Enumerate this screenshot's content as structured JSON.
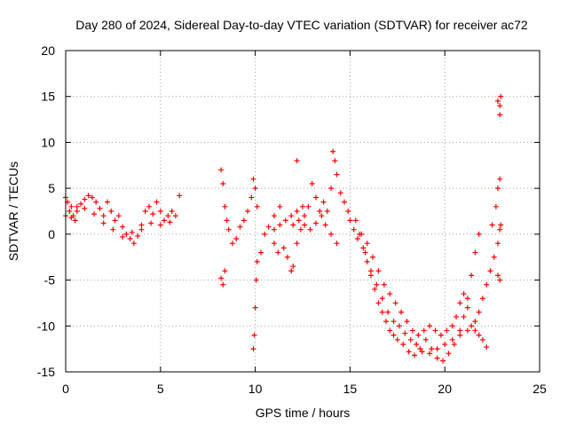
{
  "chart_data": {
    "type": "scatter",
    "title": "Day 280 of 2024, Sidereal Day-to-day VTEC variation (SDTVAR) for receiver ac72",
    "xlabel": "GPS time / hours",
    "ylabel": "SDTVAR / TECUs",
    "xlim": [
      0,
      25
    ],
    "ylim": [
      -15,
      20
    ],
    "xticks": [
      0,
      5,
      10,
      15,
      20,
      25
    ],
    "yticks": [
      -15,
      -10,
      -5,
      0,
      5,
      10,
      15,
      20
    ],
    "grid": true,
    "marker": "+",
    "series": [
      {
        "name": "SDTVAR",
        "color": "#ff0000",
        "points": [
          [
            0.0,
            4.0
          ],
          [
            0.1,
            3.5
          ],
          [
            0.2,
            2.5
          ],
          [
            0.3,
            3.0
          ],
          [
            0.4,
            2.0
          ],
          [
            0.5,
            1.5
          ],
          [
            0.6,
            3.0
          ],
          [
            0.8,
            3.3
          ],
          [
            1.0,
            3.8
          ],
          [
            1.2,
            4.2
          ],
          [
            1.4,
            4.0
          ],
          [
            1.6,
            3.5
          ],
          [
            1.8,
            2.8
          ],
          [
            2.0,
            2.0
          ],
          [
            2.2,
            3.5
          ],
          [
            2.4,
            2.5
          ],
          [
            2.6,
            1.5
          ],
          [
            2.8,
            2.0
          ],
          [
            3.0,
            0.8
          ],
          [
            3.2,
            0.0
          ],
          [
            3.4,
            -0.5
          ],
          [
            3.6,
            -1.0
          ],
          [
            3.8,
            -0.2
          ],
          [
            4.0,
            1.0
          ],
          [
            4.2,
            2.5
          ],
          [
            4.4,
            3.0
          ],
          [
            4.6,
            2.2
          ],
          [
            4.8,
            3.5
          ],
          [
            5.0,
            2.5
          ],
          [
            5.2,
            1.5
          ],
          [
            5.4,
            2.0
          ],
          [
            5.6,
            2.5
          ],
          [
            5.8,
            2.0
          ],
          [
            6.0,
            4.2
          ],
          [
            0.0,
            2.0
          ],
          [
            0.3,
            1.8
          ],
          [
            0.6,
            2.5
          ],
          [
            1.0,
            2.8
          ],
          [
            1.5,
            2.2
          ],
          [
            2.0,
            1.2
          ],
          [
            2.5,
            0.5
          ],
          [
            3.0,
            -0.3
          ],
          [
            3.5,
            0.2
          ],
          [
            4.0,
            0.5
          ],
          [
            4.5,
            1.2
          ],
          [
            5.0,
            1.0
          ],
          [
            5.5,
            1.3
          ],
          [
            8.2,
            7.0
          ],
          [
            8.3,
            5.5
          ],
          [
            8.4,
            3.0
          ],
          [
            8.5,
            1.5
          ],
          [
            8.6,
            0.5
          ],
          [
            8.8,
            -1.0
          ],
          [
            9.0,
            -0.5
          ],
          [
            9.2,
            0.8
          ],
          [
            9.4,
            1.5
          ],
          [
            9.6,
            2.5
          ],
          [
            9.8,
            4.0
          ],
          [
            9.9,
            6.0
          ],
          [
            10.0,
            5.0
          ],
          [
            10.1,
            3.0
          ],
          [
            8.2,
            -4.8
          ],
          [
            8.3,
            -5.5
          ],
          [
            8.4,
            -4.0
          ],
          [
            9.9,
            -12.5
          ],
          [
            9.95,
            -11.0
          ],
          [
            10.0,
            -8.0
          ],
          [
            10.05,
            -5.0
          ],
          [
            10.1,
            -3.0
          ],
          [
            10.3,
            -2.0
          ],
          [
            10.5,
            0.0
          ],
          [
            10.7,
            0.8
          ],
          [
            11.0,
            2.0
          ],
          [
            11.3,
            3.0
          ],
          [
            11.5,
            -1.5
          ],
          [
            11.7,
            -2.5
          ],
          [
            11.9,
            -4.0
          ],
          [
            12.0,
            -3.5
          ],
          [
            12.2,
            -1.0
          ],
          [
            12.4,
            0.5
          ],
          [
            12.6,
            2.0
          ],
          [
            12.8,
            3.0
          ],
          [
            13.0,
            5.5
          ],
          [
            13.2,
            4.0
          ],
          [
            13.4,
            2.5
          ],
          [
            12.0,
            1.0
          ],
          [
            12.3,
            1.5
          ],
          [
            12.6,
            1.0
          ],
          [
            12.9,
            0.5
          ],
          [
            13.2,
            1.2
          ],
          [
            13.5,
            2.0
          ],
          [
            11.0,
            0.5
          ],
          [
            11.3,
            1.0
          ],
          [
            11.6,
            1.5
          ],
          [
            11.9,
            2.0
          ],
          [
            12.2,
            2.5
          ],
          [
            12.5,
            3.0
          ],
          [
            13.6,
            3.5
          ],
          [
            13.8,
            2.5
          ],
          [
            14.0,
            5.0
          ],
          [
            14.1,
            9.0
          ],
          [
            14.2,
            8.0
          ],
          [
            14.3,
            6.5
          ],
          [
            14.5,
            4.5
          ],
          [
            14.7,
            3.5
          ],
          [
            14.9,
            2.5
          ],
          [
            15.0,
            1.5
          ],
          [
            15.2,
            0.5
          ],
          [
            15.4,
            -0.5
          ],
          [
            12.2,
            8.0
          ],
          [
            11.0,
            -1.0
          ],
          [
            11.2,
            -2.0
          ],
          [
            13.7,
            1.0
          ],
          [
            14.0,
            0.0
          ],
          [
            14.3,
            -1.0
          ],
          [
            15.5,
            0.0
          ],
          [
            15.7,
            -1.5
          ],
          [
            15.9,
            -3.0
          ],
          [
            16.1,
            -4.5
          ],
          [
            16.3,
            -6.0
          ],
          [
            16.5,
            -7.5
          ],
          [
            16.7,
            -8.5
          ],
          [
            16.9,
            -9.5
          ],
          [
            17.1,
            -10.5
          ],
          [
            17.3,
            -11.0
          ],
          [
            17.5,
            -11.5
          ],
          [
            17.8,
            -12.0
          ],
          [
            18.1,
            -12.8
          ],
          [
            18.4,
            -13.2
          ],
          [
            18.7,
            -12.5
          ],
          [
            19.0,
            -11.5
          ],
          [
            19.3,
            -12.5
          ],
          [
            19.6,
            -13.5
          ],
          [
            19.9,
            -13.8
          ],
          [
            20.2,
            -13.0
          ],
          [
            20.5,
            -12.0
          ],
          [
            20.8,
            -10.5
          ],
          [
            21.0,
            -9.0
          ],
          [
            21.2,
            -7.0
          ],
          [
            21.4,
            -4.5
          ],
          [
            21.6,
            -2.0
          ],
          [
            21.8,
            0.0
          ],
          [
            15.3,
            1.5
          ],
          [
            15.6,
            0.0
          ],
          [
            15.9,
            -1.0
          ],
          [
            16.2,
            -2.5
          ],
          [
            16.5,
            -4.0
          ],
          [
            16.8,
            -5.5
          ],
          [
            17.1,
            -6.5
          ],
          [
            17.4,
            -7.5
          ],
          [
            17.7,
            -8.5
          ],
          [
            18.0,
            -9.5
          ],
          [
            18.3,
            -10.5
          ],
          [
            18.6,
            -11.0
          ],
          [
            18.9,
            -10.5
          ],
          [
            19.2,
            -10.0
          ],
          [
            19.5,
            -10.5
          ],
          [
            19.8,
            -11.0
          ],
          [
            20.1,
            -10.5
          ],
          [
            20.4,
            -10.0
          ],
          [
            20.6,
            -9.0
          ],
          [
            20.8,
            -7.5
          ],
          [
            21.0,
            -6.5
          ],
          [
            21.2,
            -8.0
          ],
          [
            21.4,
            -10.0
          ],
          [
            21.6,
            -10.5
          ],
          [
            21.8,
            -11.0
          ],
          [
            22.0,
            -11.5
          ],
          [
            22.2,
            -12.3
          ],
          [
            15.8,
            -2.0
          ],
          [
            16.1,
            -4.0
          ],
          [
            16.4,
            -5.5
          ],
          [
            16.7,
            -7.0
          ],
          [
            17.0,
            -8.5
          ],
          [
            17.3,
            -9.5
          ],
          [
            17.6,
            -10.0
          ],
          [
            17.9,
            -10.8
          ],
          [
            18.2,
            -11.5
          ],
          [
            18.5,
            -12.0
          ],
          [
            18.8,
            -12.8
          ],
          [
            19.2,
            -13.0
          ],
          [
            19.6,
            -12.5
          ],
          [
            20.0,
            -12.0
          ],
          [
            20.4,
            -11.5
          ],
          [
            20.8,
            -11.0
          ],
          [
            21.2,
            -10.5
          ],
          [
            21.6,
            -9.5
          ],
          [
            21.8,
            -8.5
          ],
          [
            22.0,
            -7.0
          ],
          [
            22.2,
            -5.5
          ],
          [
            22.4,
            -4.0
          ],
          [
            22.6,
            -2.5
          ],
          [
            22.8,
            -1.0
          ],
          [
            22.9,
            0.5
          ],
          [
            22.95,
            1.0
          ],
          [
            22.5,
            1.0
          ],
          [
            22.7,
            3.0
          ],
          [
            22.8,
            5.0
          ],
          [
            22.9,
            6.0
          ],
          [
            22.8,
            14.5
          ],
          [
            22.9,
            14.0
          ],
          [
            22.95,
            15.0
          ],
          [
            22.9,
            13.0
          ],
          [
            22.8,
            -4.5
          ],
          [
            22.9,
            -5.0
          ]
        ]
      }
    ]
  }
}
